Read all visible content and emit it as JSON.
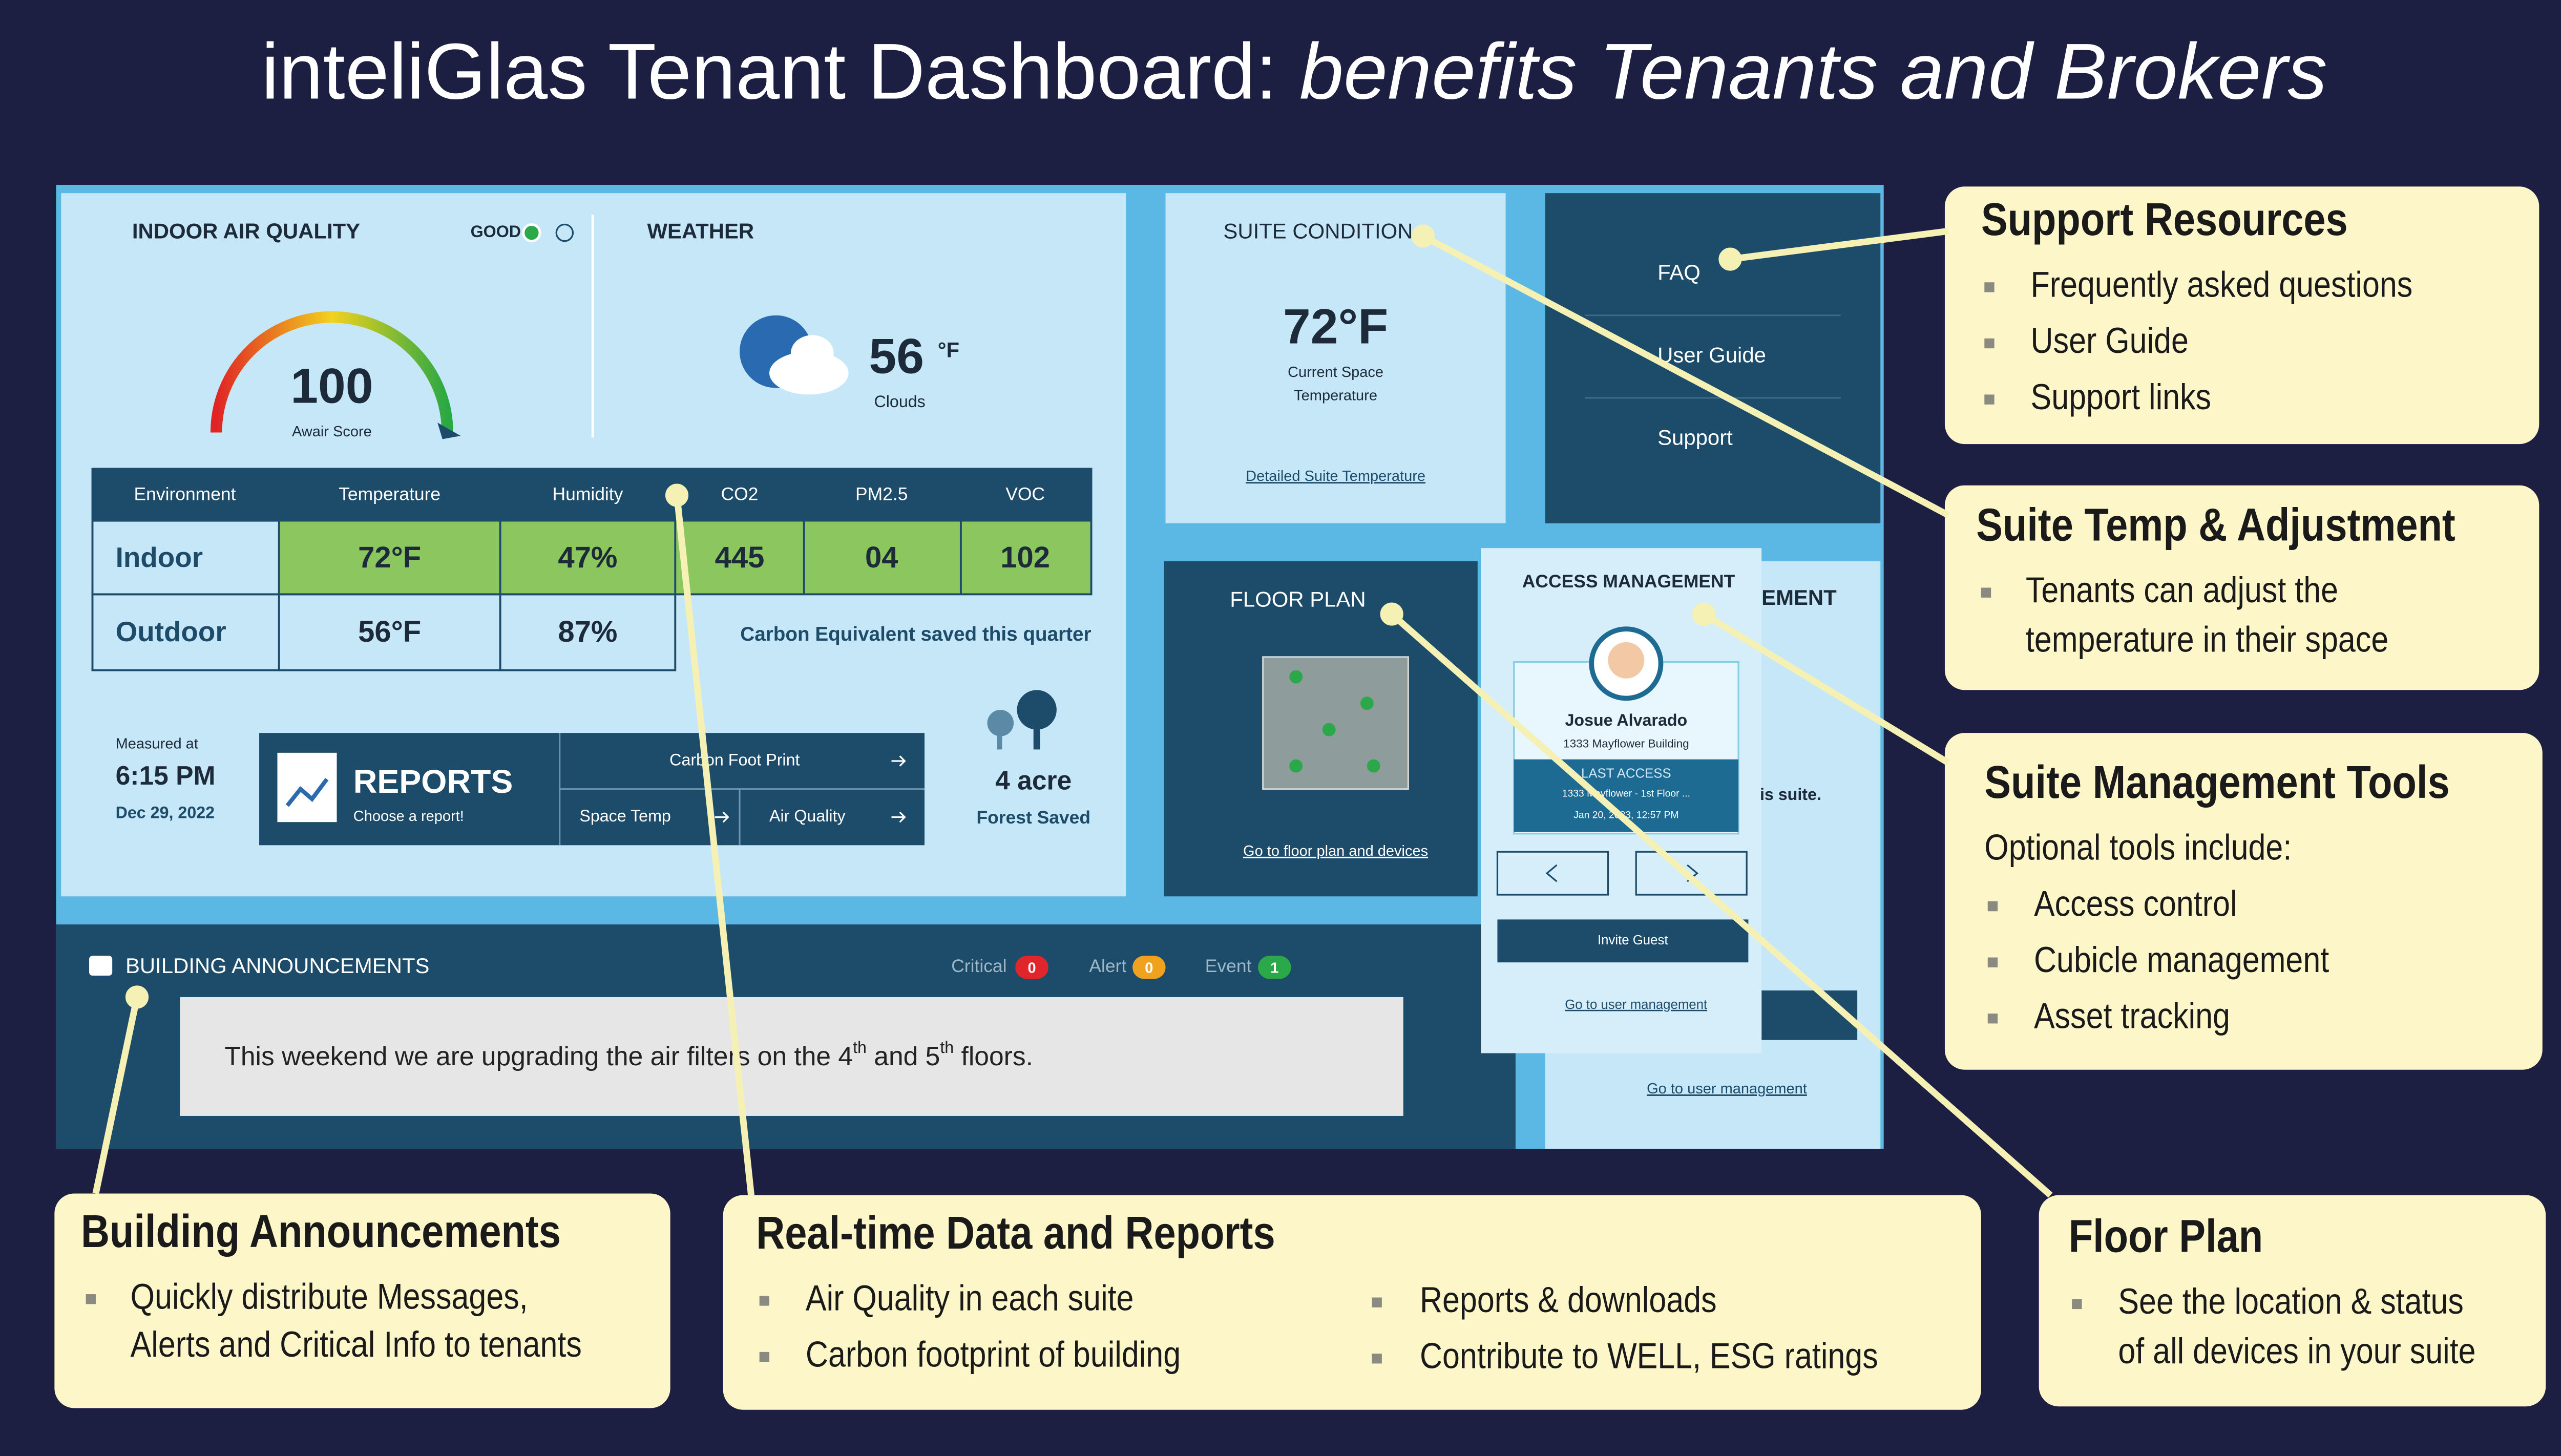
{
  "title": {
    "main": "inteliGlas Tenant Dashboard: ",
    "italic": "benefits Tenants and Brokers"
  },
  "dashboard": {
    "air_quality": {
      "label": "INDOOR AIR QUALITY",
      "status": "GOOD",
      "score": 100,
      "score_label": "Awair Score"
    },
    "weather": {
      "label": "WEATHER",
      "temp": 56,
      "unit": "°F",
      "condition": "Clouds"
    },
    "environment": {
      "headers": [
        "Environment",
        "Temperature",
        "Humidity",
        "CO2",
        "PM2.5",
        "VOC"
      ],
      "rows": [
        [
          "Indoor",
          "72°F",
          "47%",
          "445",
          "04",
          "102"
        ],
        [
          "Outdoor",
          "56°F",
          "87%"
        ]
      ],
      "note": "Carbon Equivalent saved this quarter"
    },
    "measured": {
      "label": "Measured at",
      "time": "6:15 PM",
      "date": "Dec 29, 2022"
    },
    "reports": {
      "title": "REPORTS",
      "subtitle": "Choose a report!",
      "links": [
        "Carbon Foot Print",
        "Space Temp",
        "Air Quality"
      ]
    },
    "forest": {
      "value": "4 acre",
      "label": "Forest Saved"
    },
    "suite_condition": {
      "label": "SUITE CONDITION",
      "temp": "72°F",
      "caption": [
        "Current Space",
        "Temperature"
      ],
      "link": "Detailed Suite Temperature"
    },
    "support_menu": [
      "FAQ",
      "User Guide",
      "Support"
    ],
    "floor_plan": {
      "label": "FLOOR PLAN",
      "link": "Go to floor plan and devices"
    },
    "access_management": {
      "label": "ACCESS MANAGEMENT",
      "name": "Josue Alvarado",
      "building": "1333 Mayflower Building",
      "last_access": "LAST ACCESS",
      "location": "1333 Mayflower - 1st Floor ...",
      "time": "Jan 20, 2023, 12:57 PM",
      "invite": "Invite Guest",
      "link": "Go to user management"
    },
    "access_background": {
      "label": "EMENT",
      "text": "is suite.",
      "link": "Go to user management"
    },
    "announcements": {
      "label": "BUILDING ANNOUNCEMENTS",
      "filters": [
        {
          "name": "Critical",
          "count": 0,
          "color": "#e0262a"
        },
        {
          "name": "Alert",
          "count": 0,
          "color": "#f0a21e"
        },
        {
          "name": "Event",
          "count": 1,
          "color": "#2aa84a"
        }
      ],
      "message": [
        "This weekend we are upgrading the air filters on the 4",
        "th",
        " and 5",
        "th",
        " floors."
      ]
    }
  },
  "callouts": [
    {
      "title": "Support Resources",
      "items": [
        [
          "Frequently asked questions"
        ],
        [
          "User Guide"
        ],
        [
          "Support links"
        ]
      ]
    },
    {
      "title": "Suite Temp & Adjustment",
      "items": [
        [
          "Tenants can adjust the",
          "temperature in their space"
        ]
      ]
    },
    {
      "title": "Suite Management Tools",
      "intro": "Optional tools include:",
      "items": [
        [
          "Access control"
        ],
        [
          "Cubicle management"
        ],
        [
          "Asset tracking"
        ]
      ]
    },
    {
      "title": "Building Announcements",
      "items": [
        [
          "Quickly distribute Messages,",
          "Alerts and Critical Info to tenants"
        ]
      ]
    },
    {
      "title": "Real-time Data and Reports",
      "items": [
        [
          "Air Quality in each suite"
        ],
        [
          "Carbon footprint of building"
        ],
        [
          "Reports & downloads"
        ],
        [
          "Contribute to WELL, ESG ratings"
        ]
      ]
    },
    {
      "title": "Floor Plan",
      "items": [
        [
          "See the location & status",
          "of all devices in your suite"
        ]
      ]
    }
  ]
}
